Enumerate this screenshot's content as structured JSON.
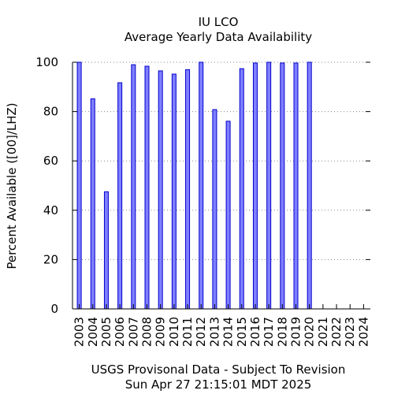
{
  "chart_data": {
    "type": "bar",
    "title": "IU LCO",
    "subtitle": "Average Yearly Data Availability",
    "ylabel": "Percent Available ([00]/LHZ)",
    "xlabel": "USGS Provisonal Data - Subject To Revision",
    "footer": "Sun Apr 27 21:15:01 MDT 2025",
    "categories": [
      "2003",
      "2004",
      "2005",
      "2006",
      "2007",
      "2008",
      "2009",
      "2010",
      "2011",
      "2012",
      "2013",
      "2014",
      "2015",
      "2016",
      "2017",
      "2018",
      "2019",
      "2020",
      "2021",
      "2022",
      "2023",
      "2024"
    ],
    "values": [
      100,
      85.2,
      47.5,
      91.7,
      99.0,
      98.4,
      96.5,
      95.2,
      97.0,
      100,
      80.8,
      76.1,
      97.4,
      99.7,
      100,
      99.7,
      99.7,
      100,
      null,
      null,
      null,
      null
    ],
    "yticks": [
      0,
      20,
      40,
      60,
      80,
      100
    ],
    "ylim": [
      0,
      100
    ],
    "grid": true,
    "colors": {
      "bar_fill": "#7f7fff",
      "bar_stroke": "#0000cc",
      "grid": "#888888",
      "axis": "#000000"
    }
  }
}
